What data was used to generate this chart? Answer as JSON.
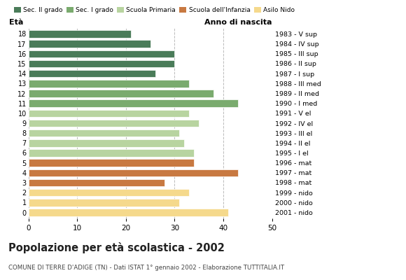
{
  "ages": [
    18,
    17,
    16,
    15,
    14,
    13,
    12,
    11,
    10,
    9,
    8,
    7,
    6,
    5,
    4,
    3,
    2,
    1,
    0
  ],
  "values": [
    21,
    25,
    30,
    30,
    26,
    33,
    38,
    43,
    33,
    35,
    31,
    32,
    34,
    34,
    43,
    28,
    33,
    31,
    41
  ],
  "right_labels": [
    "1983 - V sup",
    "1984 - IV sup",
    "1985 - III sup",
    "1986 - II sup",
    "1987 - I sup",
    "1988 - III med",
    "1989 - II med",
    "1990 - I med",
    "1991 - V el",
    "1992 - IV el",
    "1993 - III el",
    "1994 - II el",
    "1995 - I el",
    "1996 - mat",
    "1997 - mat",
    "1998 - mat",
    "1999 - nido",
    "2000 - nido",
    "2001 - nido"
  ],
  "colors": [
    "#4a7c59",
    "#4a7c59",
    "#4a7c59",
    "#4a7c59",
    "#4a7c59",
    "#7aab6e",
    "#7aab6e",
    "#7aab6e",
    "#b8d4a0",
    "#b8d4a0",
    "#b8d4a0",
    "#b8d4a0",
    "#b8d4a0",
    "#c87941",
    "#c87941",
    "#c87941",
    "#f5d98c",
    "#f5d98c",
    "#f5d98c"
  ],
  "legend_labels": [
    "Sec. II grado",
    "Sec. I grado",
    "Scuola Primaria",
    "Scuola dell'Infanzia",
    "Asilo Nido"
  ],
  "legend_colors": [
    "#4a7c59",
    "#7aab6e",
    "#b8d4a0",
    "#c87941",
    "#f5d98c"
  ],
  "title": "Popolazione per età scolastica - 2002",
  "subtitle": "COMUNE DI TERRE D'ADIGE (TN) - Dati ISTAT 1° gennaio 2002 - Elaborazione TUTTITALIA.IT",
  "xlabel_left": "Età",
  "xlabel_right": "Anno di nascita",
  "xlim": [
    0,
    50
  ],
  "xticks": [
    0,
    10,
    20,
    30,
    40,
    50
  ],
  "background_color": "#ffffff",
  "grid_color": "#bbbbbb"
}
